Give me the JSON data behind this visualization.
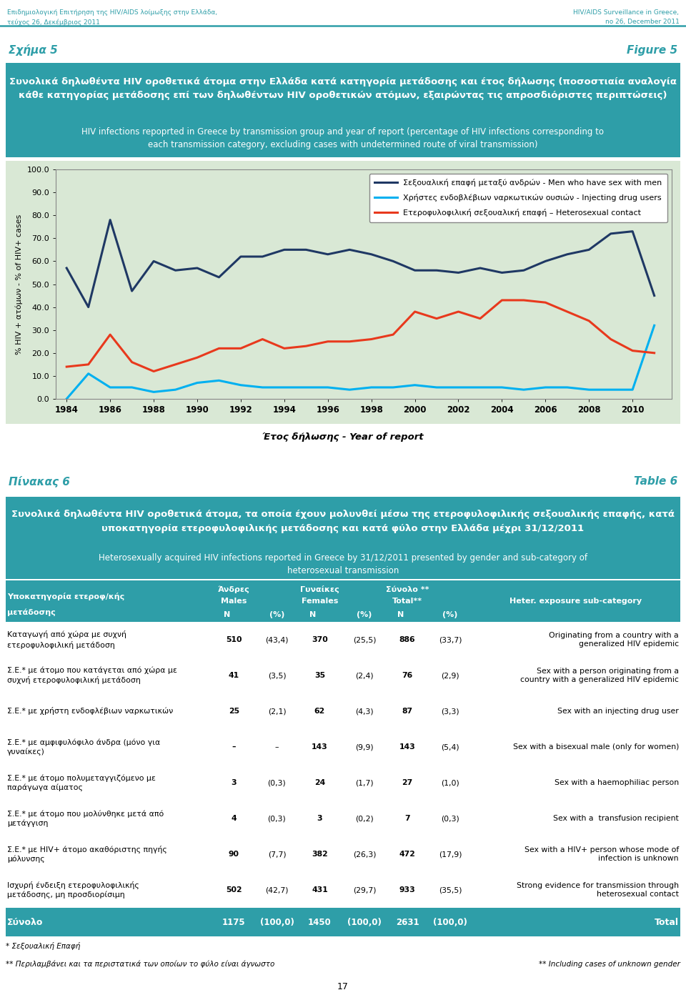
{
  "header_left": "Επιδημιολογική Επιτήρηση της HIV/AIDS λοίμωξης στην Ελλάδα,\nτεύχος 26, Δεκέμβριος 2011",
  "header_right": "HIV/AIDS Surveillance in Greece,\nno 26, December 2011",
  "fig5_label_left": "Σχήμα 5",
  "fig5_label_right": "Figure 5",
  "fig5_title_greek": "Συνολικά δηλωθέντα HIV οροθετικά άτομα στην Ελλάδα κατά κατηγορία μετάδοσης και έτος δήλωσης (ποσοστιαία αναλογία\nκάθε κατηγορίας μετάδοσης επί των δηλωθέντων HIV οροθετικών ατόμων, εξαιρώντας τις απροσδιόριστες περιπτώσεις)",
  "fig5_title_english": "HIV infections repoprted in Greece by transmission group and year of report (percentage of HIV infections corresponding to\neach transmission category, excluding cases with undetermined route of viral transmission)",
  "fig5_title_bg": "#2E9EA8",
  "chart_bg": "#D9E8D5",
  "chart_border_color": "#888888",
  "ylabel": "% HIV + ατόμων - % of HIV+ cases",
  "xlabel": "Έτος δήλωσης - Year of report",
  "ylim": [
    0,
    100
  ],
  "yticks": [
    0.0,
    10.0,
    20.0,
    30.0,
    40.0,
    50.0,
    60.0,
    70.0,
    80.0,
    90.0,
    100.0
  ],
  "years": [
    1984,
    1985,
    1986,
    1987,
    1988,
    1989,
    1990,
    1991,
    1992,
    1993,
    1994,
    1995,
    1996,
    1997,
    1998,
    1999,
    2000,
    2001,
    2002,
    2003,
    2004,
    2005,
    2006,
    2007,
    2008,
    2009,
    2010,
    2011
  ],
  "msm": [
    57,
    40,
    78,
    47,
    60,
    56,
    57,
    53,
    62,
    62,
    65,
    65,
    63,
    65,
    63,
    60,
    56,
    56,
    55,
    57,
    55,
    56,
    60,
    63,
    65,
    72,
    73,
    45
  ],
  "idu": [
    0,
    11,
    5,
    5,
    3,
    4,
    7,
    8,
    6,
    5,
    5,
    5,
    5,
    4,
    5,
    5,
    6,
    5,
    5,
    5,
    5,
    4,
    5,
    5,
    4,
    4,
    4,
    32
  ],
  "hetero": [
    14,
    15,
    28,
    16,
    12,
    15,
    18,
    22,
    22,
    26,
    22,
    23,
    25,
    25,
    26,
    28,
    38,
    35,
    38,
    35,
    43,
    43,
    42,
    38,
    34,
    26,
    21,
    20
  ],
  "msm_color": "#1F3864",
  "idu_color": "#00B0F0",
  "hetero_color": "#E8391D",
  "legend_msm": "Σεξουαλική επαφή μεταξύ ανδρών - Men who have sex with men",
  "legend_idu": "Χρήστες ενδοβλέβιων ναρκωτικών ουσιών - Injecting drug users",
  "legend_hetero": "Ετεροφυλοφιλική σεξουαλική επαφή – Heterosexual contact",
  "table6_label_left": "Πίνακας 6",
  "table6_label_right": "Table 6",
  "table6_title_greek": "Συνολικά δηλωθέντα HIV οροθετικά άτομα, τα οποία έχουν μολυνθεί μέσω της ετεροφυλοφιλικής σεξουαλικής επαφής, κατά\nυποκατηγορία ετεροφυλοφιλικής μετάδοσης και κατά φύλο στην Ελλάδα μέχρι 31/12/2011",
  "table6_title_english": "Heterosexually acquired HIV infections reported in Greece by 31/12/2011 presented by gender and sub-category of\nheterosexual transmission",
  "table6_title_bg": "#2E9EA8",
  "table_header_bg": "#2E9EA8",
  "table_footer_bg": "#2E9EA8",
  "rows": [
    {
      "greek": "Καταγωγή από χώρα με συχνή\nετεροφυλοφιλική μετάδοση",
      "males_n": "510",
      "males_pct": "(43,4)",
      "females_n": "370",
      "females_pct": "(25,5)",
      "total_n": "886",
      "total_pct": "(33,7)",
      "english": "Originating from a country with a\ngeneralized HIV epidemic"
    },
    {
      "greek": "Σ.Ε.* με άτομο που κατάγεται από χώρα με\nσυχνή ετεροφυλοφιλική μετάδοση",
      "males_n": "41",
      "males_pct": "(3,5)",
      "females_n": "35",
      "females_pct": "(2,4)",
      "total_n": "76",
      "total_pct": "(2,9)",
      "english": "Sex with a person originating from a\ncountry with a generalized HIV epidemic"
    },
    {
      "greek": "Σ.Ε.* με χρήστη ενδοφλέβιων ναρκωτικών",
      "males_n": "25",
      "males_pct": "(2,1)",
      "females_n": "62",
      "females_pct": "(4,3)",
      "total_n": "87",
      "total_pct": "(3,3)",
      "english": "Sex with an injecting drug user"
    },
    {
      "greek": "Σ.Ε.* με αμφιφυλόφιλο άνδρα (μόνο για\nγυναίκες)",
      "males_n": "–",
      "males_pct": "–",
      "females_n": "143",
      "females_pct": "(9,9)",
      "total_n": "143",
      "total_pct": "(5,4)",
      "english": "Sex with a bisexual male (only for women)"
    },
    {
      "greek": "Σ.Ε.* με άτομο πολυμεταγγιζόμενο με\nπαράγωγα αίματος",
      "males_n": "3",
      "males_pct": "(0,3)",
      "females_n": "24",
      "females_pct": "(1,7)",
      "total_n": "27",
      "total_pct": "(1,0)",
      "english": "Sex with a haemophiliac person"
    },
    {
      "greek": "Σ.Ε.* με άτομο που μολύνθηκε μετά από\nμετάγγιση",
      "males_n": "4",
      "males_pct": "(0,3)",
      "females_n": "3",
      "females_pct": "(0,2)",
      "total_n": "7",
      "total_pct": "(0,3)",
      "english": "Sex with a  transfusion recipient"
    },
    {
      "greek": "Σ.Ε.* με HIV+ άτομο ακαθόριστης πηγής\nμόλυνσης",
      "males_n": "90",
      "males_pct": "(7,7)",
      "females_n": "382",
      "females_pct": "(26,3)",
      "total_n": "472",
      "total_pct": "(17,9)",
      "english": "Sex with a HIV+ person whose mode of\ninfection is unknown"
    },
    {
      "greek": "Ισχυρή ένδειξη ετεροφυλοφιλικής\nμετάδοσης, μη προσδιορίσιμη",
      "males_n": "502",
      "males_pct": "(42,7)",
      "females_n": "431",
      "females_pct": "(29,7)",
      "total_n": "933",
      "total_pct": "(35,5)",
      "english": "Strong evidence for transmission through\nheterosexual contact"
    }
  ],
  "footer_row": {
    "greek": "Σύνολο",
    "males_n": "1175",
    "males_pct": "(100,0)",
    "females_n": "1450",
    "females_pct": "(100,0)",
    "total_n": "2631",
    "total_pct": "(100,0)",
    "english": "Total"
  },
  "footnote1_greek": "* Σεξουαλική Επαφή",
  "footnote2_greek": "** Περιλαμβάνει και τα περιστατικά των οποίων το φύλο είναι άγνωστο",
  "footnote2_english": "** Including cases of unknown gender",
  "page_number": "17"
}
